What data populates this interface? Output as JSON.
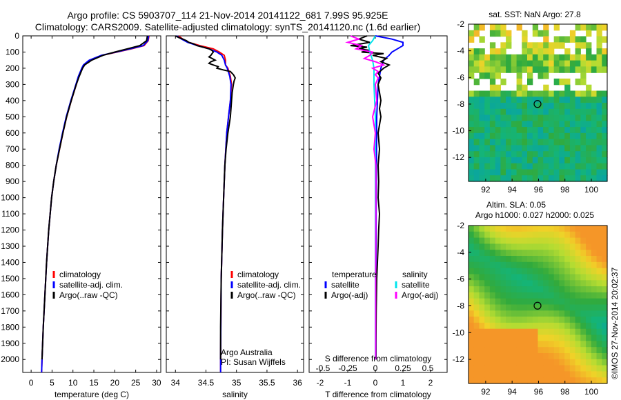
{
  "title_line1": "Argo profile: CS 5903707_114 21-Nov-2014 20141122_681 7.99S 95.925E",
  "title_line2": "Climatology: CARS2009. Satellite-adjusted climatology: synTS_20141120.nc (1.6d earlier)",
  "map_sst_title": "sat. SST: NaN Argo: 27.8",
  "map_sla_title1": "Altim. SLA: 0.05",
  "map_sla_title2": "Argo h1000: 0.027 h2000: 0.025",
  "stamp": "©IMOS 27-Nov-2014 20:02:37",
  "colors": {
    "climatology": "#ff0000",
    "satellite_adj": "#0000ff",
    "argo": "#000000",
    "s_satellite": "#00e5ee",
    "s_argo": "#ff00ff"
  },
  "chart_data": [
    {
      "type": "line",
      "panel": "temperature",
      "xlabel": "temperature (deg C)",
      "ylabel": "",
      "xlim": [
        -2,
        31
      ],
      "ylim": [
        2080,
        0
      ],
      "y_reversed": true,
      "xticks": [
        0,
        5,
        10,
        15,
        20,
        25,
        30
      ],
      "yticks": [
        0,
        100,
        200,
        300,
        400,
        500,
        600,
        700,
        800,
        900,
        1000,
        1100,
        1200,
        1300,
        1400,
        1500,
        1600,
        1700,
        1800,
        1900,
        2000
      ],
      "legend": [
        "climatology",
        "satellite-adj. clim.",
        "Argo(..raw -QC)"
      ],
      "legend_placement": "bottom-center",
      "series": [
        {
          "name": "climatology",
          "depth": [
            0,
            30,
            60,
            80,
            100,
            120,
            150,
            180,
            200,
            250,
            300,
            400,
            500,
            600,
            700,
            800,
            900,
            1000,
            1200,
            1400,
            1600,
            1800,
            2000,
            2080
          ],
          "values": [
            28.2,
            28.0,
            27.0,
            24.0,
            20.5,
            17.0,
            14.0,
            12.6,
            12.2,
            11.4,
            10.8,
            9.6,
            8.5,
            7.6,
            6.8,
            6.0,
            5.4,
            4.9,
            4.2,
            3.7,
            3.3,
            2.9,
            2.6,
            2.5
          ]
        },
        {
          "name": "satellite-adj. clim.",
          "depth": [
            0,
            30,
            60,
            80,
            100,
            120,
            150,
            180,
            200,
            250,
            300,
            400,
            500,
            600,
            700,
            800,
            900,
            1000,
            1200,
            1400,
            1600,
            1800,
            2000,
            2080
          ],
          "values": [
            28.1,
            27.9,
            26.8,
            23.7,
            20.3,
            16.8,
            13.9,
            12.5,
            12.1,
            11.3,
            10.7,
            9.5,
            8.4,
            7.5,
            6.7,
            6.0,
            5.4,
            4.9,
            4.2,
            3.7,
            3.3,
            2.9,
            2.6,
            2.5
          ]
        },
        {
          "name": "Argo(..raw -QC)",
          "depth": [
            0,
            30,
            60,
            80,
            100,
            120,
            150,
            180,
            200,
            250,
            300,
            400,
            500,
            600,
            700,
            800,
            900,
            1000,
            1200,
            1400,
            1600,
            1800,
            2000
          ],
          "values": [
            27.8,
            27.6,
            26.0,
            23.0,
            20.0,
            17.2,
            14.5,
            12.8,
            12.3,
            11.5,
            10.8,
            9.6,
            8.5,
            7.6,
            6.8,
            6.0,
            5.4,
            4.9,
            4.2,
            3.7,
            3.3,
            2.9,
            2.6
          ]
        }
      ]
    },
    {
      "type": "line",
      "panel": "salinity",
      "xlabel": "salinity",
      "xlim": [
        33.85,
        36.1
      ],
      "ylim": [
        2080,
        0
      ],
      "y_reversed": true,
      "xticks": [
        34,
        34.5,
        35,
        35.5,
        36
      ],
      "legend": [
        "climatology",
        "satellite-adj. clim.",
        "Argo(..raw -QC)"
      ],
      "legend_placement": "bottom-center",
      "annotation": [
        "Argo Australia",
        "PI: Susan Wijffels"
      ],
      "series": [
        {
          "name": "climatology",
          "depth": [
            0,
            20,
            40,
            60,
            80,
            100,
            120,
            150,
            180,
            200,
            250,
            300,
            400,
            500,
            600,
            800,
            1000,
            1200,
            1500,
            2000,
            2080
          ],
          "values": [
            34.05,
            34.12,
            34.22,
            34.4,
            34.62,
            34.72,
            34.8,
            34.82,
            34.82,
            34.86,
            34.9,
            34.92,
            34.9,
            34.87,
            34.84,
            34.81,
            34.79,
            34.77,
            34.75,
            34.74,
            34.74
          ]
        },
        {
          "name": "satellite-adj. clim.",
          "depth": [
            0,
            20,
            40,
            60,
            80,
            100,
            120,
            150,
            180,
            200,
            250,
            300,
            400,
            500,
            600,
            800,
            1000,
            1200,
            1500,
            2000,
            2080
          ],
          "values": [
            34.02,
            34.1,
            34.2,
            34.36,
            34.55,
            34.68,
            34.76,
            34.8,
            34.82,
            34.85,
            34.89,
            34.91,
            34.9,
            34.87,
            34.84,
            34.81,
            34.79,
            34.77,
            34.75,
            34.74,
            34.74
          ]
        },
        {
          "name": "Argo(..raw -QC)",
          "depth": [
            0,
            10,
            20,
            30,
            40,
            50,
            60,
            70,
            80,
            90,
            100,
            110,
            120,
            130,
            140,
            150,
            160,
            170,
            180,
            190,
            200,
            210,
            220,
            240,
            260,
            280,
            300,
            350,
            400,
            500,
            600,
            700,
            800,
            1000,
            1200,
            1500,
            1800,
            2000
          ],
          "values": [
            34.0,
            34.05,
            34.12,
            34.18,
            34.22,
            34.3,
            34.35,
            34.45,
            34.55,
            34.6,
            34.62,
            34.6,
            34.58,
            34.55,
            34.6,
            34.65,
            34.58,
            34.55,
            34.62,
            34.7,
            34.68,
            34.78,
            34.9,
            34.95,
            34.98,
            34.96,
            34.95,
            34.93,
            34.92,
            34.9,
            34.86,
            34.83,
            34.81,
            34.79,
            34.77,
            34.75,
            34.74,
            34.74
          ]
        }
      ]
    },
    {
      "type": "line",
      "panel": "difference",
      "xlabel": "T difference from climatology",
      "x2label": "S difference from climatology",
      "xlim": [
        -2.4,
        2.6
      ],
      "ylim": [
        2080,
        0
      ],
      "y_reversed": true,
      "xticks": [
        -2,
        -1,
        0,
        1,
        2
      ],
      "x2ticks": [
        "-0.5",
        "-0.25",
        "0",
        "0.25",
        "0.5"
      ],
      "x2tick_positions_T": [
        -1.9,
        -1.0,
        0,
        1.0,
        1.9
      ],
      "legend_groups": [
        "temperature",
        "salinity"
      ],
      "legend": [
        "satellite",
        "Argo(-adj)",
        "satellite",
        "Argo(-adj)"
      ],
      "series": [
        {
          "name": "satellite",
          "group": "temperature",
          "depth": [
            0,
            20,
            40,
            60,
            80,
            100,
            120,
            150,
            200,
            300,
            500,
            1000,
            1500,
            2000
          ],
          "values": [
            0.0,
            0.6,
            1.0,
            1.0,
            0.8,
            0.6,
            0.5,
            0.3,
            0.2,
            0.1,
            0.05,
            0.03,
            0.02,
            0.02
          ]
        },
        {
          "name": "Argo(-adj)",
          "group": "temperature",
          "depth": [
            0,
            20,
            40,
            60,
            70,
            80,
            90,
            100,
            110,
            120,
            140,
            160,
            180,
            200,
            230,
            260,
            300,
            350,
            400,
            450,
            500,
            600,
            700,
            800,
            900,
            1000,
            1100,
            1200,
            1300,
            1500,
            1700,
            1900,
            2000
          ],
          "values": [
            -0.3,
            -0.6,
            -0.2,
            -0.9,
            -0.3,
            -0.6,
            -0.2,
            -0.5,
            0.3,
            -0.1,
            0.4,
            0.2,
            0.5,
            0.3,
            0.1,
            0.2,
            0.1,
            0.15,
            0.2,
            0.15,
            0.2,
            0.1,
            0.15,
            0.1,
            0.12,
            0.1,
            0.15,
            0.12,
            0.1,
            0.05,
            0.03,
            0.02,
            0.02
          ]
        },
        {
          "name": "satellite",
          "group": "salinity",
          "depth": [
            0,
            30,
            60,
            100,
            150,
            200,
            300,
            500,
            1000,
            1500,
            2000
          ],
          "values": [
            0.0,
            -0.1,
            -0.25,
            -0.2,
            -0.1,
            -0.05,
            -0.05,
            0.0,
            0.0,
            0.0,
            0.0
          ]
        },
        {
          "name": "Argo(-adj)",
          "group": "salinity",
          "depth": [
            0,
            20,
            40,
            60,
            80,
            100,
            120,
            140,
            160,
            180,
            200,
            220,
            240,
            260,
            300,
            400,
            500,
            600,
            700,
            800,
            1000,
            1500,
            2000
          ],
          "values": [
            -0.9,
            -0.6,
            -1.0,
            -0.5,
            -0.7,
            -0.1,
            -0.2,
            -0.4,
            0.0,
            0.3,
            -0.1,
            0.1,
            0.0,
            0.1,
            0.0,
            0.05,
            -0.1,
            0.0,
            -0.05,
            0.02,
            0.02,
            0.01,
            0.01
          ]
        }
      ]
    },
    {
      "type": "heatmap",
      "panel": "map_sst",
      "title": "sat. SST: NaN Argo: 27.8",
      "xlim": [
        90.7,
        101.2
      ],
      "ylim": [
        -13.8,
        -2.0
      ],
      "xticks": [
        92,
        94,
        96,
        98,
        100
      ],
      "yticks": [
        -2,
        -4,
        -6,
        -8,
        -10,
        -12
      ],
      "marker": {
        "lon": 95.925,
        "lat": -7.99
      }
    },
    {
      "type": "heatmap",
      "panel": "map_sla",
      "title": [
        "Altim. SLA: 0.05",
        "Argo h1000: 0.027 h2000: 0.025"
      ],
      "xlim": [
        90.7,
        101.2
      ],
      "ylim": [
        -13.8,
        -2.0
      ],
      "xticks": [
        92,
        94,
        96,
        98,
        100
      ],
      "yticks": [
        -2,
        -4,
        -6,
        -8,
        -10,
        -12
      ],
      "marker": {
        "lon": 95.925,
        "lat": -7.99
      }
    }
  ]
}
